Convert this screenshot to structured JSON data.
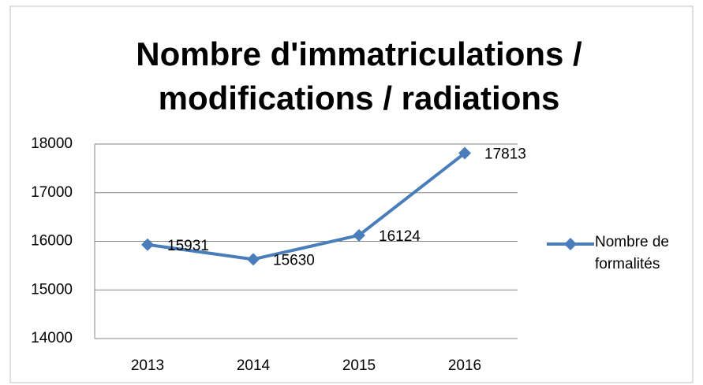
{
  "chart_data": {
    "type": "line",
    "title_lines": [
      "Nombre d'immatriculations /",
      "modifications / radiations"
    ],
    "categories": [
      "2013",
      "2014",
      "2015",
      "2016"
    ],
    "series": [
      {
        "name": "Nombre de formalités",
        "color": "#4a7ebb",
        "values": [
          15931,
          15630,
          16124,
          17813
        ]
      }
    ],
    "ylim": [
      14000,
      18000
    ],
    "yticks": [
      14000,
      15000,
      16000,
      17000,
      18000
    ],
    "grid": true,
    "data_labels": true,
    "legend": "right"
  }
}
